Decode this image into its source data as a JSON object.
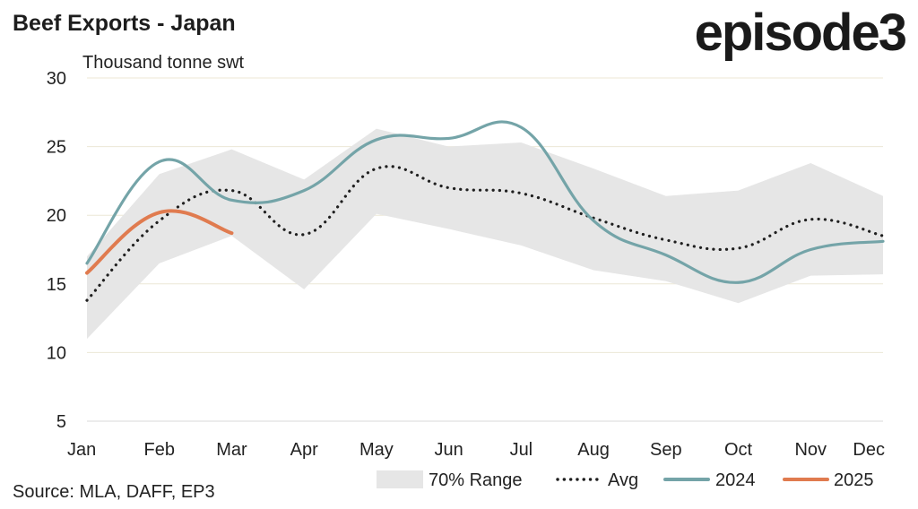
{
  "header": {
    "title": "Beef Exports - Japan",
    "logo_text": "episode3"
  },
  "footer": {
    "source": "Source: MLA, DAFF, EP3"
  },
  "chart_data": {
    "type": "line",
    "title": "Beef Exports - Japan",
    "ylabel": "Thousand tonne swt",
    "xlabel": "",
    "categories": [
      "Jan",
      "Feb",
      "Mar",
      "Apr",
      "May",
      "Jun",
      "Jul",
      "Aug",
      "Sep",
      "Oct",
      "Nov",
      "Dec"
    ],
    "ylim": [
      5,
      30
    ],
    "yticks": [
      5,
      10,
      15,
      20,
      25,
      30
    ],
    "grid": true,
    "legend_position": "bottom-right",
    "range": {
      "name": "70% Range",
      "color": "#e6e6e6",
      "lower": [
        11.0,
        16.5,
        18.5,
        14.6,
        20.1,
        19.0,
        17.8,
        16.0,
        15.2,
        13.6,
        15.6,
        15.7
      ],
      "upper": [
        17.0,
        23.0,
        24.8,
        22.6,
        26.3,
        25.0,
        25.3,
        23.4,
        21.4,
        21.8,
        23.8,
        21.4
      ]
    },
    "series": [
      {
        "name": "Avg",
        "style": "dotted",
        "color": "#1f1f1f",
        "values": [
          13.8,
          19.6,
          21.8,
          18.6,
          23.4,
          22.0,
          21.6,
          19.8,
          18.2,
          17.6,
          19.7,
          18.5
        ]
      },
      {
        "name": "2024",
        "style": "solid",
        "color": "#74a4a8",
        "values": [
          16.5,
          23.9,
          21.1,
          21.8,
          25.5,
          25.6,
          26.4,
          19.6,
          17.1,
          15.1,
          17.5,
          18.1
        ]
      },
      {
        "name": "2025",
        "style": "solid",
        "color": "#e07b4f",
        "values": [
          15.8,
          20.2,
          18.7,
          null,
          null,
          null,
          null,
          null,
          null,
          null,
          null,
          null
        ]
      }
    ]
  }
}
